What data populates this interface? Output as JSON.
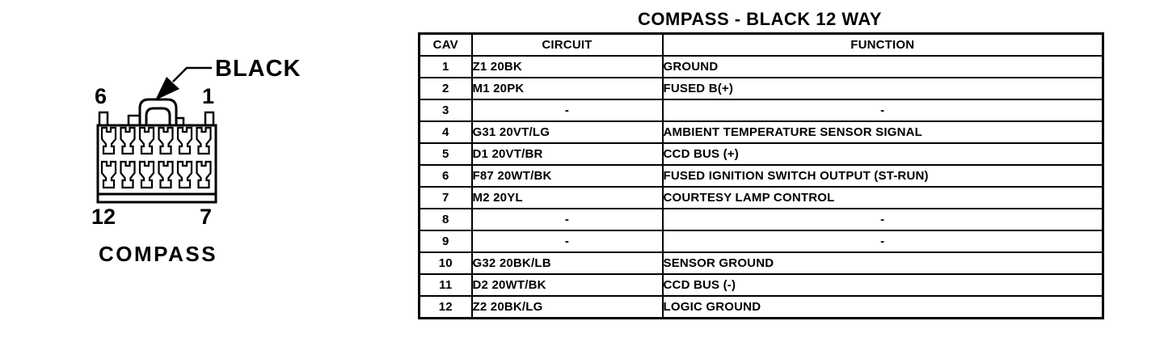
{
  "colors": {
    "ink": "#000000",
    "paper": "#ffffff"
  },
  "title": "COMPASS - BLACK 12 WAY",
  "figure": {
    "connector_name": "COMPASS",
    "connector_color": "BLACK",
    "pin_labels": {
      "top_left": "6",
      "top_right": "1",
      "bottom_left": "12",
      "bottom_right": "7"
    },
    "cavity_rows": 2,
    "cavity_cols": 6
  },
  "table": {
    "headers": [
      "CAV",
      "CIRCUIT",
      "FUNCTION"
    ],
    "rows": [
      {
        "cav": "1",
        "circuit": "Z1 20BK",
        "function": "GROUND"
      },
      {
        "cav": "2",
        "circuit": "M1 20PK",
        "function": "FUSED B(+)"
      },
      {
        "cav": "3",
        "circuit": "-",
        "function": "-"
      },
      {
        "cav": "4",
        "circuit": "G31 20VT/LG",
        "function": "AMBIENT TEMPERATURE SENSOR SIGNAL"
      },
      {
        "cav": "5",
        "circuit": "D1 20VT/BR",
        "function": "CCD BUS (+)"
      },
      {
        "cav": "6",
        "circuit": "F87 20WT/BK",
        "function": "FUSED IGNITION SWITCH OUTPUT (ST-RUN)"
      },
      {
        "cav": "7",
        "circuit": "M2 20YL",
        "function": "COURTESY LAMP CONTROL"
      },
      {
        "cav": "8",
        "circuit": "-",
        "function": "-"
      },
      {
        "cav": "9",
        "circuit": "-",
        "function": "-"
      },
      {
        "cav": "10",
        "circuit": "G32 20BK/LB",
        "function": "SENSOR GROUND"
      },
      {
        "cav": "11",
        "circuit": "D2 20WT/BK",
        "function": "CCD BUS (-)"
      },
      {
        "cav": "12",
        "circuit": "Z2 20BK/LG",
        "function": "LOGIC GROUND"
      }
    ]
  }
}
